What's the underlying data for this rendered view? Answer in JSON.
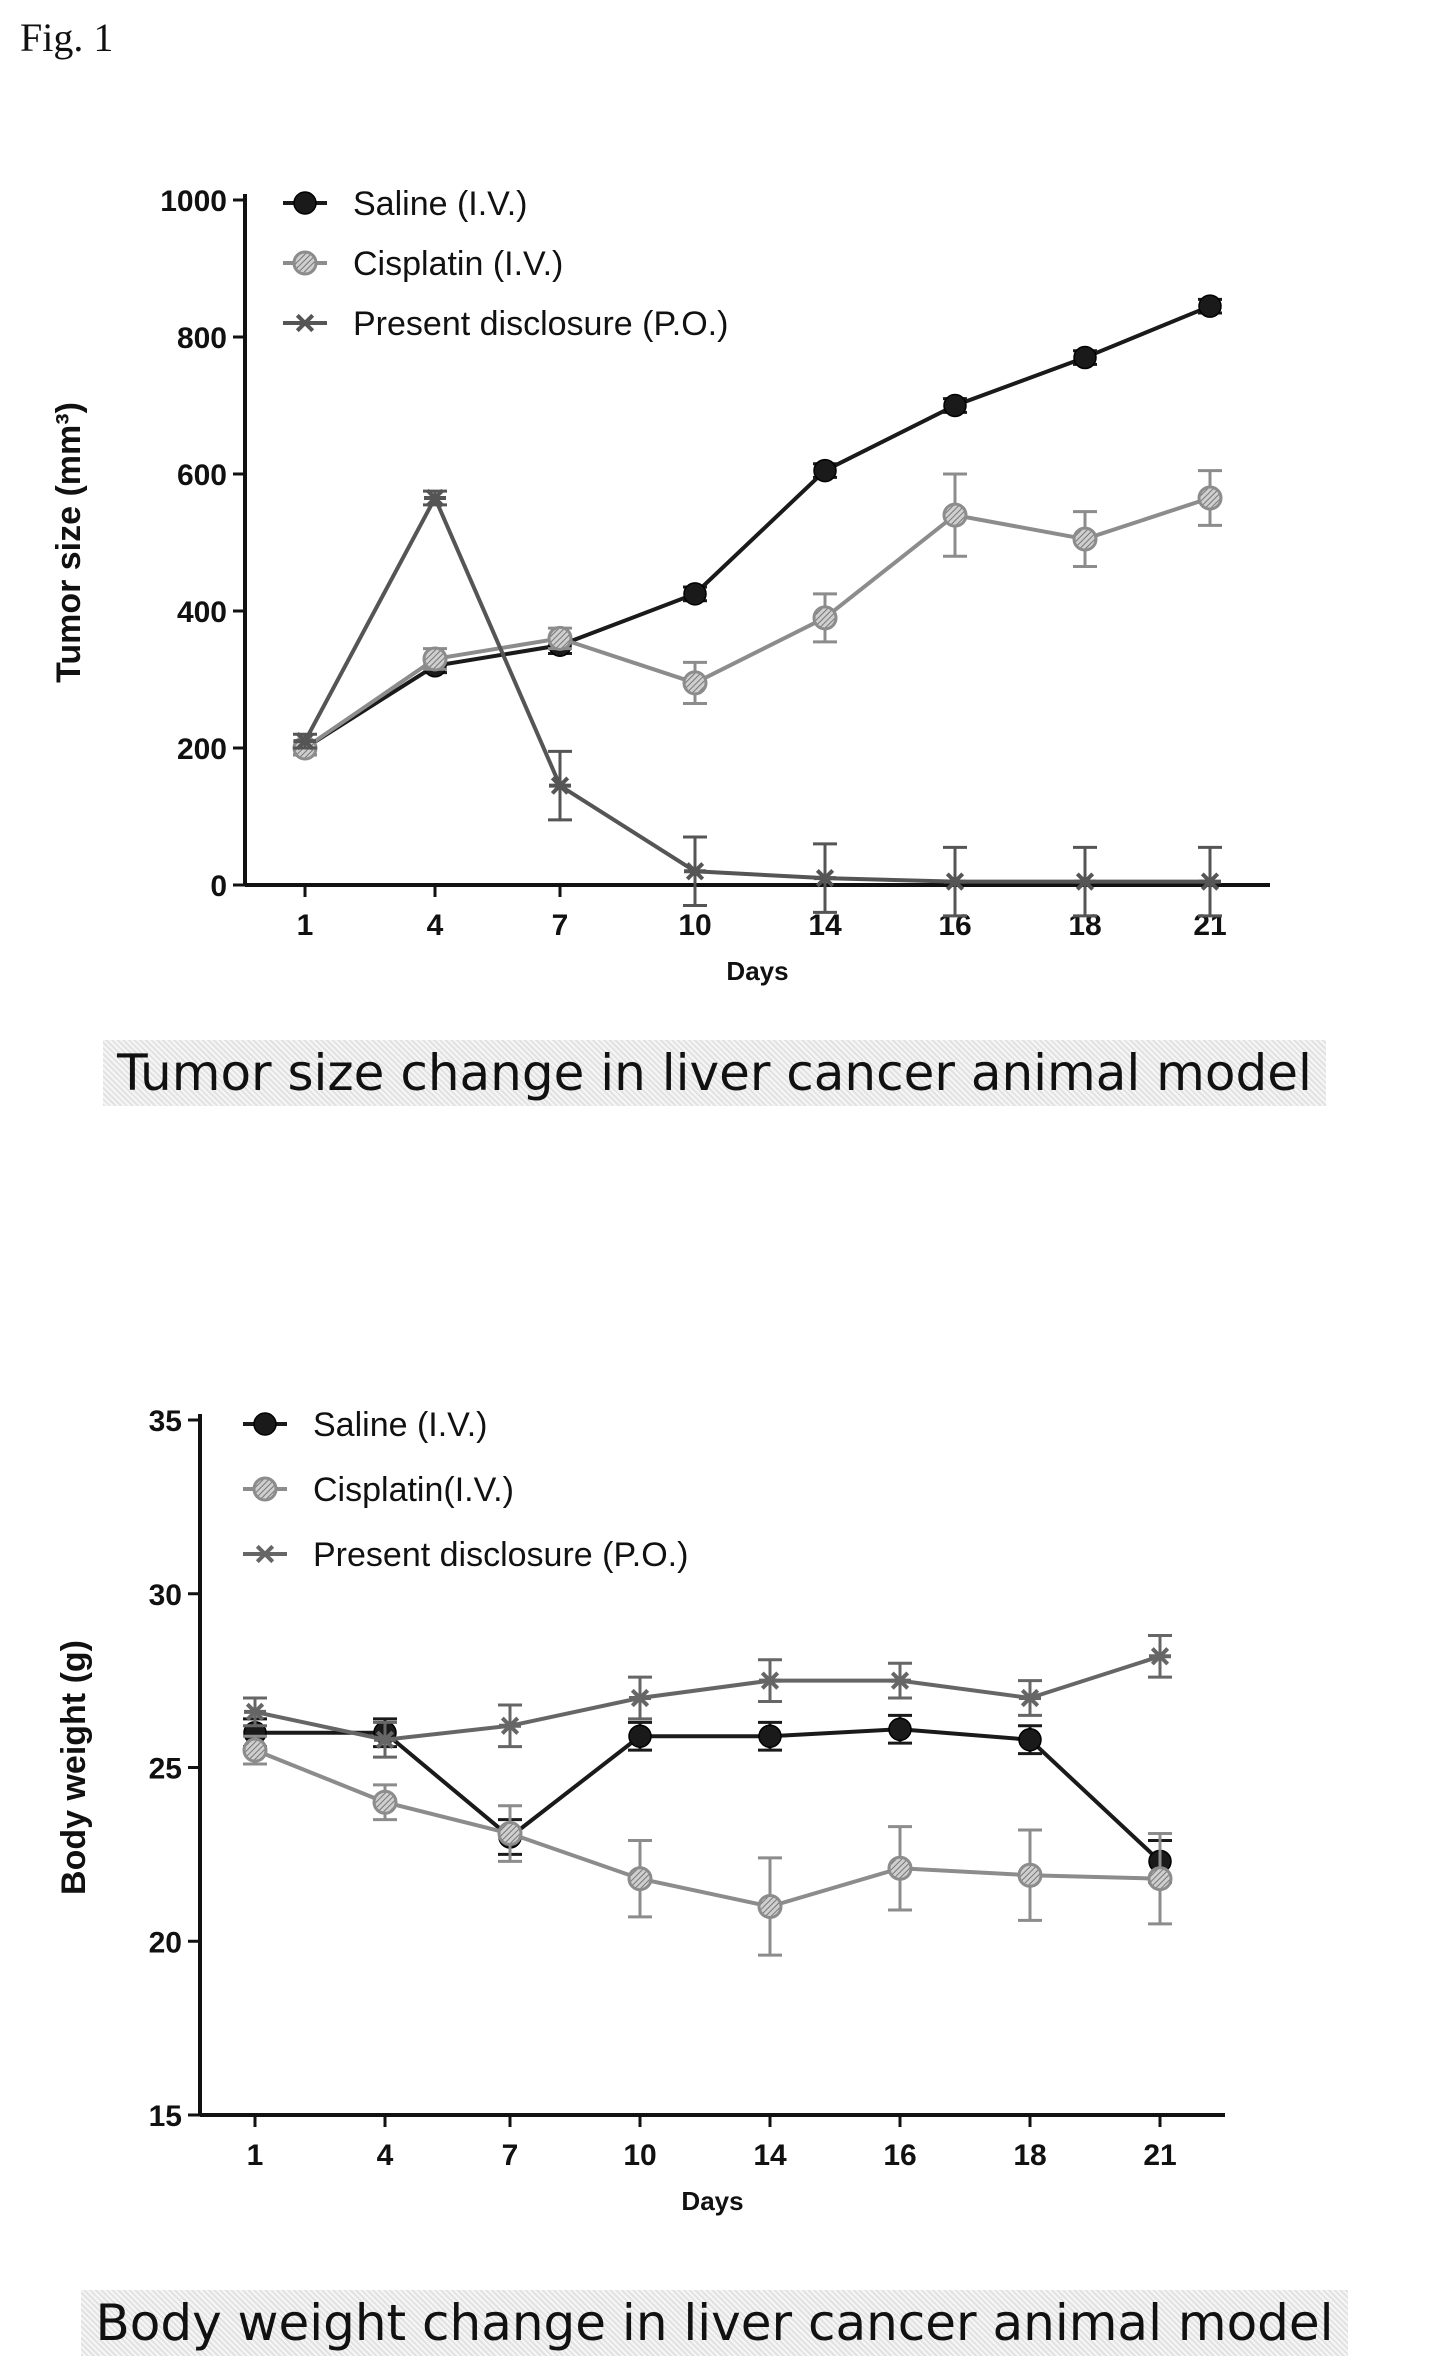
{
  "figure_label": "Fig. 1",
  "chart_data": [
    {
      "type": "line",
      "ylabel": "Tumor size (mm³)",
      "xlabel": "Days",
      "categories": [
        "1",
        "4",
        "7",
        "10",
        "14",
        "16",
        "18",
        "21"
      ],
      "ylim": [
        0,
        1000
      ],
      "yticks": [
        0,
        200,
        400,
        600,
        800,
        1000
      ],
      "legend_position": "top-left",
      "caption": "Tumor size change in liver cancer animal model",
      "series": [
        {
          "name": "Saline (I.V.)",
          "marker": "filled-circle",
          "color": "#1a1a1a",
          "values": [
            200,
            320,
            350,
            425,
            605,
            700,
            770,
            845
          ],
          "errors": [
            10,
            10,
            12,
            10,
            10,
            10,
            10,
            10
          ]
        },
        {
          "name": "Cisplatin (I.V.)",
          "marker": "hatched-circle",
          "color": "#8c8c8c",
          "values": [
            200,
            330,
            360,
            295,
            390,
            540,
            505,
            565
          ],
          "errors": [
            10,
            15,
            15,
            30,
            35,
            60,
            40,
            40
          ]
        },
        {
          "name": "Present disclosure (P.O.)",
          "marker": "star",
          "color": "#555555",
          "values": [
            210,
            565,
            145,
            20,
            10,
            5,
            5,
            5
          ],
          "errors": [
            10,
            10,
            50,
            50,
            50,
            50,
            50,
            50
          ]
        }
      ]
    },
    {
      "type": "line",
      "ylabel": "Body weight (g)",
      "xlabel": "Days",
      "categories": [
        "1",
        "4",
        "7",
        "10",
        "14",
        "16",
        "18",
        "21"
      ],
      "ylim": [
        15,
        35
      ],
      "yticks": [
        15,
        20,
        25,
        30,
        35
      ],
      "legend_position": "top-left",
      "caption": "Body weight change in liver cancer animal model",
      "series": [
        {
          "name": "Saline (I.V.)",
          "marker": "filled-circle",
          "color": "#1a1a1a",
          "values": [
            26.0,
            26.0,
            23.0,
            25.9,
            25.9,
            26.1,
            25.8,
            22.3
          ],
          "errors": [
            0.4,
            0.4,
            0.5,
            0.4,
            0.4,
            0.4,
            0.4,
            0.6
          ]
        },
        {
          "name": "Cisplatin(I.V.)",
          "marker": "hatched-circle",
          "color": "#8c8c8c",
          "values": [
            25.5,
            24.0,
            23.1,
            21.8,
            21.0,
            22.1,
            21.9,
            21.8
          ],
          "errors": [
            0.4,
            0.5,
            0.8,
            1.1,
            1.4,
            1.2,
            1.3,
            1.3
          ]
        },
        {
          "name": "Present disclosure (P.O.)",
          "marker": "star",
          "color": "#666666",
          "values": [
            26.6,
            25.8,
            26.2,
            27.0,
            27.5,
            27.5,
            27.0,
            28.2
          ],
          "errors": [
            0.4,
            0.5,
            0.6,
            0.6,
            0.6,
            0.5,
            0.5,
            0.6
          ]
        }
      ]
    }
  ]
}
